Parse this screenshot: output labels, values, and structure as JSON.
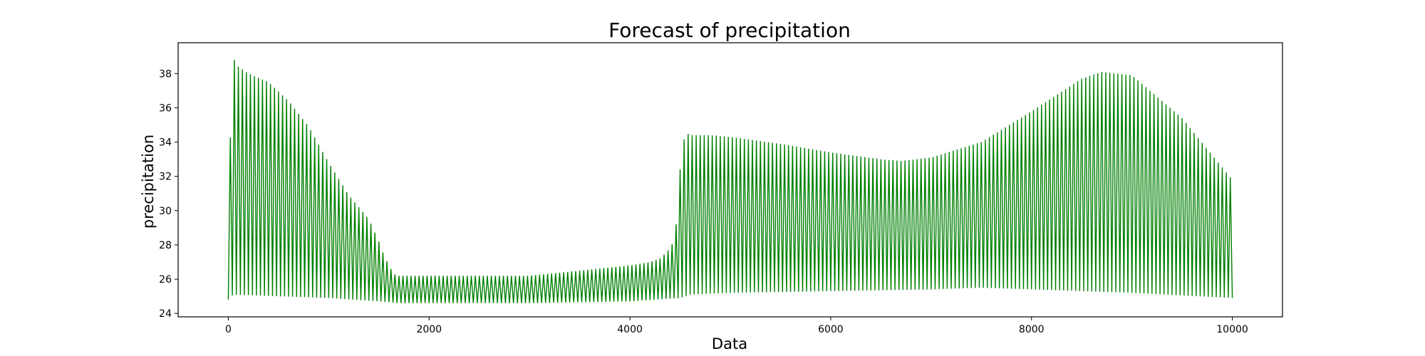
{
  "chart_data": {
    "type": "line",
    "title": "Forecast of precipitation",
    "xlabel": "Data",
    "ylabel": "precipitation",
    "xlim": [
      -500,
      10500
    ],
    "ylim": [
      23.8,
      39.8
    ],
    "x_ticks": [
      0,
      2000,
      4000,
      6000,
      8000,
      10000
    ],
    "y_ticks": [
      24,
      26,
      28,
      30,
      32,
      34,
      36,
      38
    ],
    "grid": false,
    "legend": "none",
    "series": [
      {
        "color": "#008000",
        "oscillating": true,
        "x_range": [
          0,
          10000
        ],
        "upper_envelope": {
          "x": [
            0,
            30,
            50,
            100,
            200,
            400,
            600,
            800,
            1000,
            1200,
            1400,
            1500,
            1550,
            1600,
            1650,
            1700,
            1800,
            2000,
            2500,
            3000,
            3500,
            4000,
            4200,
            4300,
            4400,
            4450,
            4500,
            4550,
            4600,
            4800,
            5000,
            5500,
            6000,
            6500,
            6700,
            7000,
            7500,
            8000,
            8500,
            8700,
            9000,
            9500,
            10000
          ],
          "y": [
            24.8,
            39.0,
            38.9,
            38.4,
            38.0,
            37.5,
            36.4,
            34.9,
            32.8,
            30.9,
            29.5,
            28.2,
            27.4,
            26.8,
            26.3,
            26.2,
            26.2,
            26.2,
            26.2,
            26.2,
            26.5,
            26.8,
            27.0,
            27.2,
            27.8,
            28.4,
            32.4,
            34.6,
            34.4,
            34.4,
            34.3,
            33.9,
            33.4,
            33.0,
            32.9,
            33.1,
            34.0,
            35.8,
            37.7,
            38.1,
            37.9,
            35.4,
            31.8
          ]
        },
        "lower_envelope": {
          "x": [
            0,
            50,
            500,
            1000,
            1500,
            1700,
            2000,
            3000,
            4000,
            4500,
            4600,
            5000,
            6000,
            7000,
            7500,
            8000,
            9000,
            10000
          ],
          "y": [
            24.8,
            25.1,
            25.0,
            24.9,
            24.7,
            24.6,
            24.6,
            24.6,
            24.7,
            24.9,
            25.1,
            25.2,
            25.3,
            25.4,
            25.5,
            25.4,
            25.2,
            24.9
          ]
        }
      }
    ]
  }
}
